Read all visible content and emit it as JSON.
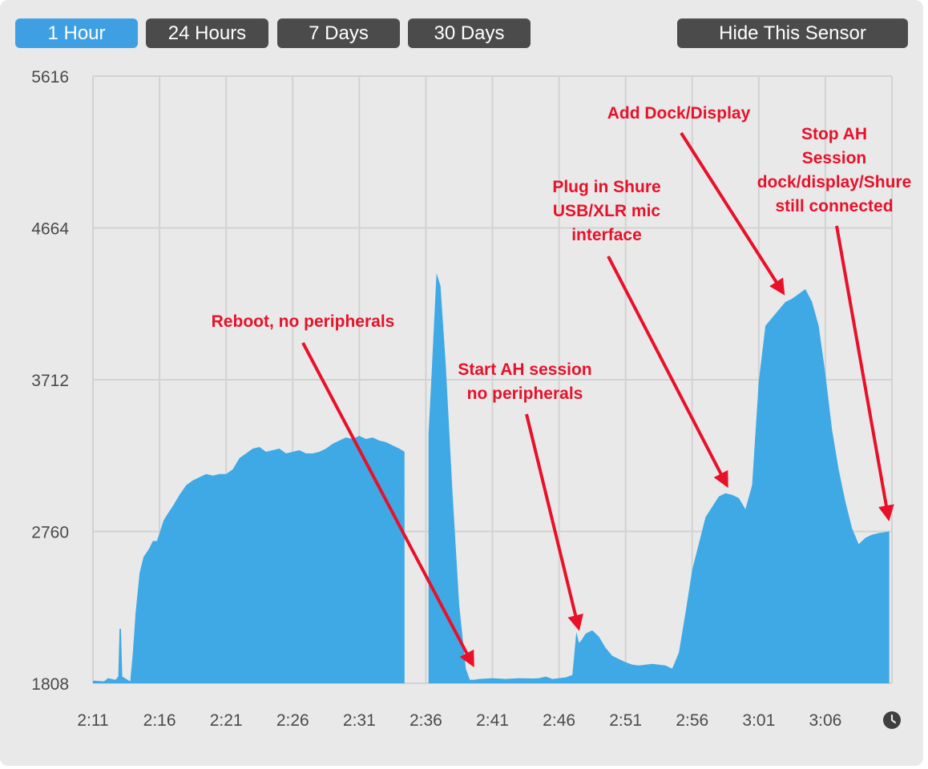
{
  "toolbar": {
    "range_buttons": [
      {
        "label": "1 Hour",
        "active": true
      },
      {
        "label": "24 Hours",
        "active": false
      },
      {
        "label": "7 Days",
        "active": false
      },
      {
        "label": "30 Days",
        "active": false
      }
    ],
    "hide_button": "Hide This Sensor"
  },
  "clock_icon": "clock-icon",
  "colors": {
    "fill": "#3ea9e5",
    "active_button": "#3ea0e3",
    "button": "#4b4b4b",
    "annotation": "#e8112a",
    "grid": "#d2d2d2"
  },
  "chart_data": {
    "type": "area",
    "title": "",
    "xlabel": "",
    "ylabel": "",
    "x_unit": "minutes after 2:11",
    "xlim": [
      0,
      60
    ],
    "ylim": [
      1808,
      5616
    ],
    "x_ticks": [
      0,
      5,
      10,
      15,
      20,
      25,
      30,
      35,
      40,
      45,
      50,
      55
    ],
    "x_tick_labels": [
      "2:11",
      "2:16",
      "2:21",
      "2:26",
      "2:31",
      "2:36",
      "2:41",
      "2:46",
      "2:51",
      "2:56",
      "3:01",
      "3:06"
    ],
    "y_ticks": [
      1808,
      2760,
      3712,
      4664,
      5616
    ],
    "y_tick_labels": [
      "1808",
      "2760",
      "3712",
      "4664",
      "5616"
    ],
    "grid": true,
    "legend": "none",
    "series": [
      {
        "segments": [
          {
            "x": [
              0,
              0.8,
              1.0,
              1.1,
              1.7,
              1.9,
              2.0,
              2.1,
              2.2,
              2.4,
              2.8,
              3.0,
              3.2,
              3.5,
              3.8,
              4.2,
              4.5,
              4.8,
              5.0,
              5.3,
              5.6,
              6.0,
              6.5,
              7.0,
              7.5,
              8.0,
              8.5,
              9.0,
              9.5,
              10.0,
              10.5,
              11.0,
              11.5,
              12.0,
              12.5,
              13.0,
              13.5,
              14.0,
              14.5,
              15.0,
              15.5,
              16.0,
              16.5,
              17.0,
              17.5,
              18.0,
              18.5,
              19.0,
              19.5,
              20.0,
              20.5,
              21.0,
              21.5,
              22.0,
              22.5,
              23.0,
              23.4
            ],
            "y": [
              1825,
              1820,
              1830,
              1840,
              1830,
              1850,
              2150,
              2150,
              1850,
              1840,
              1820,
              2000,
              2250,
              2500,
              2600,
              2650,
              2700,
              2700,
              2750,
              2830,
              2870,
              2920,
              2990,
              3050,
              3080,
              3100,
              3120,
              3110,
              3120,
              3120,
              3150,
              3220,
              3250,
              3280,
              3290,
              3260,
              3270,
              3280,
              3250,
              3260,
              3270,
              3250,
              3250,
              3260,
              3280,
              3310,
              3330,
              3350,
              3340,
              3360,
              3340,
              3350,
              3330,
              3320,
              3300,
              3280,
              3260
            ]
          },
          {
            "x": [
              25.2,
              25.4,
              25.8,
              26.1,
              26.5,
              27.0,
              27.5,
              28.0,
              28.3,
              28.6,
              29.0,
              30.0,
              31.0,
              32.0,
              33.0,
              33.5,
              34.0,
              34.5,
              35.0,
              35.5,
              36.0,
              36.3,
              36.5,
              36.7,
              37.0,
              37.5,
              38.0,
              38.5,
              39.0,
              39.5,
              40.0,
              40.5,
              41.0,
              42.0,
              43.0,
              43.5,
              44.0,
              44.5,
              45.0,
              46.0,
              47.0,
              47.5,
              48.0,
              48.5,
              49.0,
              49.5,
              50.0,
              50.5,
              51.0,
              51.5,
              52.0,
              52.5,
              53.0,
              53.5,
              54.0,
              54.5,
              55.0,
              55.5,
              56.0,
              56.5,
              57.0,
              57.5,
              58.0,
              58.5,
              59.0,
              59.8
            ],
            "y": [
              3370,
              3700,
              4380,
              4300,
              3800,
              3000,
              2300,
              1900,
              1830,
              1830,
              1835,
              1840,
              1835,
              1840,
              1838,
              1840,
              1850,
              1835,
              1840,
              1845,
              1860,
              2130,
              2060,
              2080,
              2120,
              2140,
              2100,
              2030,
              1980,
              1960,
              1940,
              1925,
              1920,
              1930,
              1920,
              1900,
              2000,
              2250,
              2520,
              2850,
              2980,
              3000,
              2990,
              2970,
              2900,
              3050,
              3700,
              4050,
              4100,
              4150,
              4200,
              4220,
              4250,
              4280,
              4200,
              4050,
              3750,
              3400,
              3150,
              2950,
              2780,
              2680,
              2720,
              2740,
              2750,
              2760
            ]
          }
        ]
      }
    ],
    "annotations": [
      {
        "lines": [
          "Reboot, no peripherals"
        ]
      },
      {
        "lines": [
          "Start AH session",
          "no peripherals"
        ]
      },
      {
        "lines": [
          "Plug in Shure",
          "USB/XLR mic",
          "interface"
        ]
      },
      {
        "lines": [
          "Add Dock/Display"
        ]
      },
      {
        "lines": [
          "Stop AH",
          "Session",
          "dock/display/Shure",
          "still connected"
        ]
      }
    ]
  }
}
